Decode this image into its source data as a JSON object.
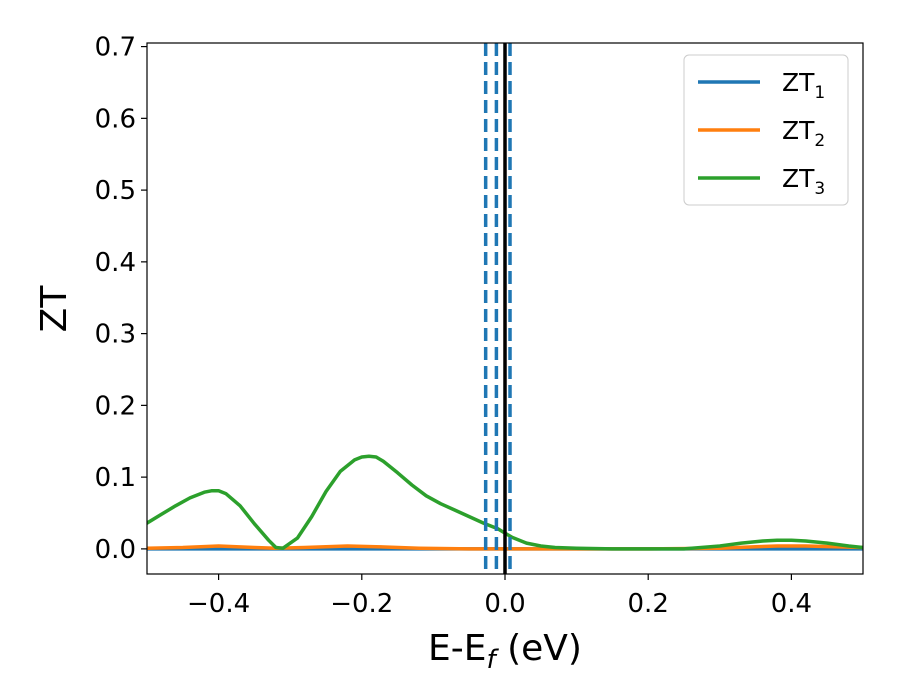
{
  "chart_data": {
    "type": "line",
    "xlabel": {
      "main": "E-E",
      "sub": "f",
      "unit": " (eV)"
    },
    "ylabel": "ZT",
    "xlim": [
      -0.5,
      0.5
    ],
    "ylim": [
      -0.035,
      0.705
    ],
    "xticks": [
      -0.4,
      -0.2,
      0.0,
      0.2,
      0.4
    ],
    "xtick_labels": [
      "−0.4",
      "−0.2",
      "0.0",
      "0.2",
      "0.4"
    ],
    "yticks": [
      0.0,
      0.1,
      0.2,
      0.3,
      0.4,
      0.5,
      0.6,
      0.7
    ],
    "ytick_labels": [
      "0.0",
      "0.1",
      "0.2",
      "0.3",
      "0.4",
      "0.5",
      "0.6",
      "0.7"
    ],
    "legend_position": "top-right",
    "series": [
      {
        "name": "ZT",
        "name_sub": "1",
        "color": "#1f77b4",
        "x": [
          -0.5,
          0.5
        ],
        "y": [
          0.0,
          0.0
        ]
      },
      {
        "name": "ZT",
        "name_sub": "2",
        "color": "#ff7f0e",
        "x": [
          -0.5,
          -0.45,
          -0.4,
          -0.35,
          -0.32,
          -0.28,
          -0.22,
          -0.18,
          -0.12,
          -0.05,
          0.0,
          0.1,
          0.2,
          0.3,
          0.35,
          0.38,
          0.42,
          0.46,
          0.5
        ],
        "y": [
          0.001,
          0.002,
          0.004,
          0.002,
          0.001,
          0.002,
          0.004,
          0.003,
          0.001,
          0.0,
          0.0,
          0.0,
          0.0,
          0.001,
          0.003,
          0.004,
          0.004,
          0.003,
          0.002
        ]
      },
      {
        "name": "ZT",
        "name_sub": "3",
        "color": "#2ca02c",
        "x": [
          -0.5,
          -0.48,
          -0.46,
          -0.44,
          -0.42,
          -0.41,
          -0.4,
          -0.39,
          -0.37,
          -0.35,
          -0.33,
          -0.32,
          -0.31,
          -0.29,
          -0.27,
          -0.25,
          -0.23,
          -0.21,
          -0.2,
          -0.19,
          -0.18,
          -0.17,
          -0.15,
          -0.13,
          -0.11,
          -0.09,
          -0.07,
          -0.05,
          -0.03,
          -0.01,
          0.0,
          0.01,
          0.03,
          0.05,
          0.07,
          0.1,
          0.15,
          0.2,
          0.25,
          0.3,
          0.33,
          0.36,
          0.38,
          0.4,
          0.42,
          0.45,
          0.48,
          0.5
        ],
        "y": [
          0.036,
          0.048,
          0.06,
          0.071,
          0.079,
          0.081,
          0.081,
          0.077,
          0.06,
          0.035,
          0.012,
          0.002,
          0.001,
          0.015,
          0.045,
          0.08,
          0.108,
          0.124,
          0.128,
          0.129,
          0.128,
          0.122,
          0.106,
          0.089,
          0.074,
          0.063,
          0.054,
          0.045,
          0.036,
          0.028,
          0.022,
          0.016,
          0.008,
          0.004,
          0.002,
          0.001,
          0.0,
          0.0,
          0.0,
          0.004,
          0.008,
          0.011,
          0.012,
          0.012,
          0.011,
          0.008,
          0.004,
          0.002
        ]
      }
    ],
    "vlines": [
      {
        "x": -0.027,
        "style": "dashed",
        "color": "#1f77b4"
      },
      {
        "x": -0.012,
        "style": "dashed",
        "color": "#1f77b4"
      },
      {
        "x": 0.007,
        "style": "dashed",
        "color": "#1f77b4"
      },
      {
        "x": 0.0,
        "style": "solid",
        "color": "#000000"
      }
    ]
  }
}
